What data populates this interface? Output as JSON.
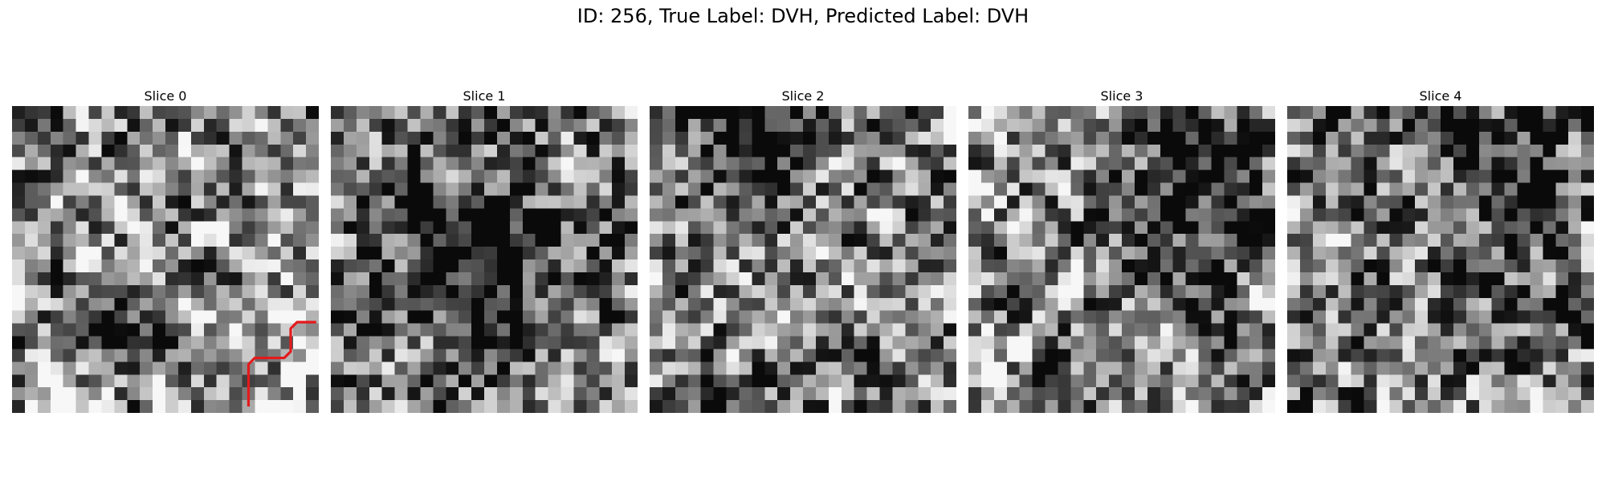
{
  "figure": {
    "title": "ID: 256, True Label: DVH, Predicted Label: DVH"
  },
  "slices": [
    {
      "label": "Slice 0",
      "seed": 11,
      "dark_spots": [
        [
          7.5,
          14.5,
          5.0,
          2.2
        ]
      ],
      "bias": 0.04,
      "has_annotation": true
    },
    {
      "label": "Slice 1",
      "seed": 23,
      "dark_spots": [
        [
          9.5,
          11.0,
          8.5,
          4.0
        ]
      ],
      "bias": -0.02,
      "has_annotation": false
    },
    {
      "label": "Slice 2",
      "seed": 37,
      "dark_spots": [
        [
          7.0,
          2.0,
          7.0,
          3.5
        ]
      ],
      "bias": 0.0,
      "has_annotation": false
    },
    {
      "label": "Slice 3",
      "seed": 51,
      "dark_spots": [
        [
          17.0,
          5.5,
          8.0,
          3.5
        ]
      ],
      "bias": 0.0,
      "has_annotation": false
    },
    {
      "label": "Slice 4",
      "seed": 67,
      "dark_spots": [
        [
          16.5,
          4.5,
          8.0,
          3.5
        ]
      ],
      "bias": 0.0,
      "has_annotation": false
    }
  ],
  "grid_size": 24,
  "annotation": {
    "color": "#e41a1c",
    "path": [
      [
        18.5,
        23.5
      ],
      [
        18.5,
        20.2
      ],
      [
        19.0,
        19.7
      ],
      [
        21.3,
        19.7
      ],
      [
        21.8,
        19.2
      ],
      [
        21.8,
        17.4
      ],
      [
        22.3,
        16.9
      ],
      [
        23.8,
        16.9
      ]
    ]
  }
}
